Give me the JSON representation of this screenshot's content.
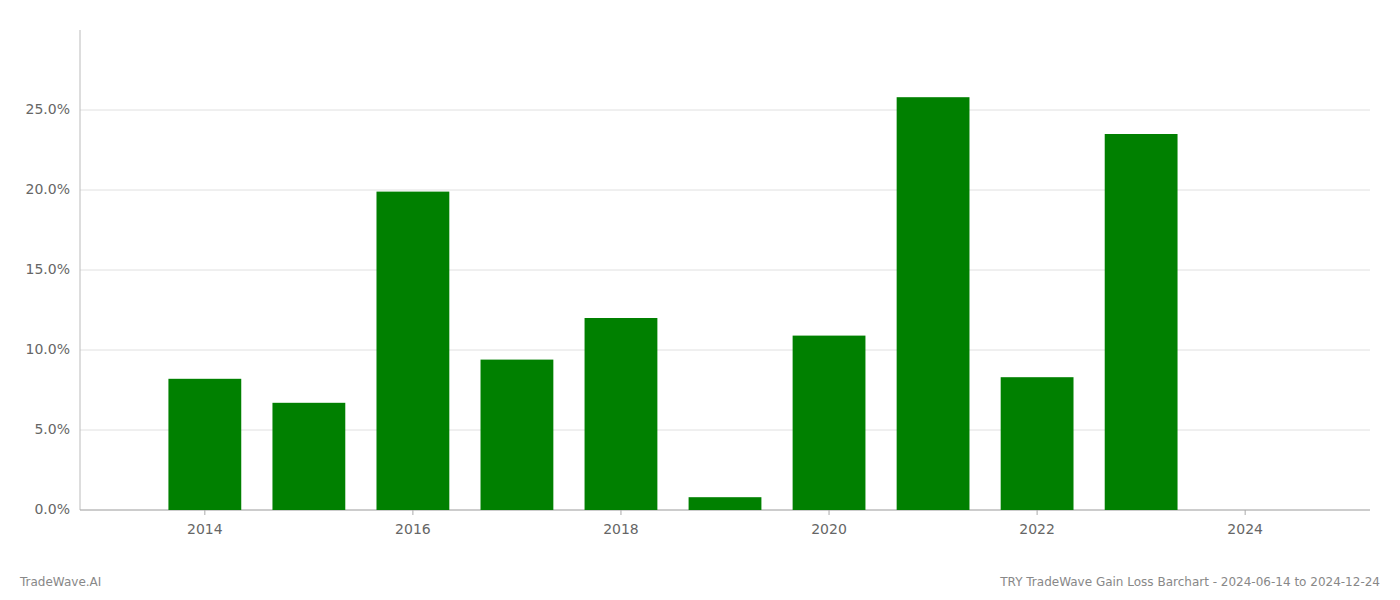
{
  "chart_data": {
    "type": "bar",
    "title": "TRY TradeWave Gain Loss Barchart - 2024-06-14 to 2024-12-24",
    "annotations": [
      "TradeWave.AI"
    ],
    "x": [
      2014,
      2015,
      2016,
      2017,
      2018,
      2019,
      2020,
      2021,
      2022,
      2023,
      2024
    ],
    "values": [
      0.082,
      0.067,
      0.199,
      0.094,
      0.12,
      0.008,
      0.109,
      0.258,
      0.083,
      0.235,
      0.0
    ],
    "color": "#008000",
    "xlim": [
      2012.8,
      2025.2
    ],
    "xticks": [
      2014,
      2016,
      2018,
      2020,
      2022,
      2024
    ],
    "ylim": [
      0,
      0.3
    ],
    "yticks": [
      {
        "value": 0.0,
        "label": "0.0%"
      },
      {
        "value": 0.05,
        "label": "5.0%"
      },
      {
        "value": 0.1,
        "label": "10.0%"
      },
      {
        "value": 0.15,
        "label": "15.0%"
      },
      {
        "value": 0.2,
        "label": "20.0%"
      },
      {
        "value": 0.25,
        "label": "25.0%"
      }
    ],
    "grid": true
  }
}
